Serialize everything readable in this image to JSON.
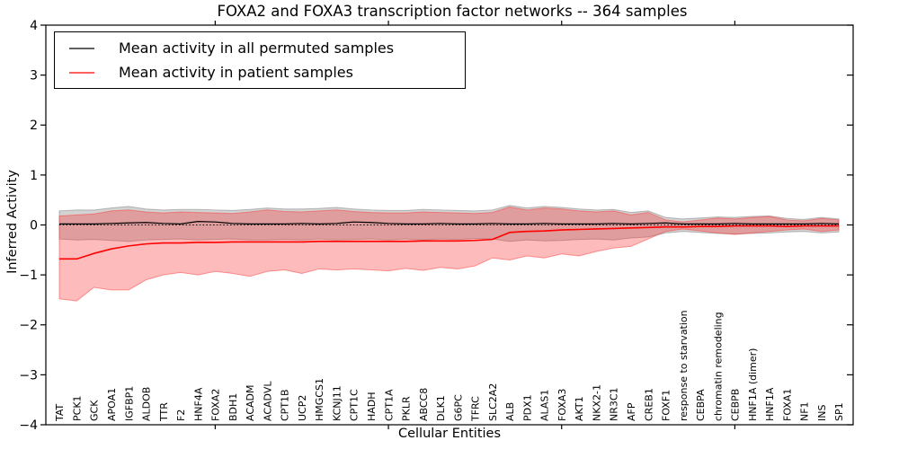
{
  "chart_data": {
    "type": "line",
    "title": "FOXA2 and FOXA3 transcription factor networks -- 364 samples",
    "xlabel": "Cellular Entities",
    "ylabel": "Inferred Activity",
    "ylim": [
      -4,
      4
    ],
    "yticks": [
      4,
      3,
      2,
      1,
      0,
      -1,
      -2,
      -3,
      -4
    ],
    "x_major_tick_indices": [
      9,
      19,
      29,
      39
    ],
    "grid": false,
    "legend": {
      "position": "upper left",
      "entries": [
        {
          "label": "Mean activity in all permuted samples",
          "color": "#000000"
        },
        {
          "label": "Mean activity in patient samples",
          "color": "#ff0000"
        }
      ]
    },
    "categories": [
      "TAT",
      "PCK1",
      "GCK",
      "APOA1",
      "IGFBP1",
      "ALDOB",
      "TTR",
      "F2",
      "HNF4A",
      "FOXA2",
      "BDH1",
      "ACADM",
      "ACADVL",
      "CPT1B",
      "UCP2",
      "HMGCS1",
      "KCNJ11",
      "CPT1C",
      "HADH",
      "CPT1A",
      "PKLR",
      "ABCC8",
      "DLK1",
      "G6PC",
      "TFRC",
      "SLC2A2",
      "ALB",
      "PDX1",
      "ALAS1",
      "FOXA3",
      "AKT1",
      "NKX2-1",
      "NR3C1",
      "AFP",
      "CREB1",
      "FOXF1",
      "response to starvation",
      "CEBPA",
      "chromatin remodeling",
      "CEBPB",
      "HNF1A (dimer)",
      "HNF1A",
      "FOXA1",
      "NF1",
      "INS",
      "SP1"
    ],
    "series": [
      {
        "name": "Mean activity in all permuted samples",
        "color": "#000000",
        "line_width": 1.2,
        "values": [
          0.02,
          0.02,
          0.02,
          0.03,
          0.04,
          0.05,
          0.03,
          0.02,
          0.07,
          0.06,
          0.03,
          0.02,
          0.02,
          0.02,
          0.03,
          0.02,
          0.03,
          0.06,
          0.05,
          0.03,
          0.02,
          0.02,
          0.03,
          0.02,
          0.02,
          0.03,
          0.02,
          0.02,
          0.03,
          0.02,
          0.02,
          0.02,
          0.03,
          0.02,
          0.03,
          0.04,
          0.02,
          0.02,
          0.02,
          0.03,
          0.02,
          0.02,
          0.02,
          0.02,
          0.03,
          0.02
        ]
      },
      {
        "name": "Mean activity in patient samples",
        "color": "#ff0000",
        "line_width": 1.6,
        "values": [
          -0.68,
          -0.68,
          -0.57,
          -0.48,
          -0.42,
          -0.38,
          -0.36,
          -0.36,
          -0.35,
          -0.35,
          -0.34,
          -0.34,
          -0.34,
          -0.34,
          -0.34,
          -0.33,
          -0.33,
          -0.33,
          -0.33,
          -0.33,
          -0.33,
          -0.32,
          -0.32,
          -0.32,
          -0.31,
          -0.29,
          -0.15,
          -0.13,
          -0.12,
          -0.1,
          -0.09,
          -0.08,
          -0.07,
          -0.06,
          -0.05,
          -0.04,
          -0.04,
          -0.03,
          -0.03,
          -0.02,
          -0.02,
          -0.02,
          -0.03,
          -0.02,
          -0.02,
          -0.02
        ]
      }
    ],
    "bands": [
      {
        "name": "permuted-range",
        "fill": "rgba(130,130,130,0.35)",
        "edge": "rgba(110,110,110,0.45)",
        "upper": [
          0.28,
          0.3,
          0.3,
          0.34,
          0.37,
          0.32,
          0.3,
          0.31,
          0.31,
          0.3,
          0.29,
          0.31,
          0.34,
          0.32,
          0.32,
          0.33,
          0.35,
          0.32,
          0.3,
          0.29,
          0.29,
          0.31,
          0.3,
          0.29,
          0.28,
          0.3,
          0.39,
          0.34,
          0.37,
          0.35,
          0.32,
          0.3,
          0.31,
          0.25,
          0.28,
          0.15,
          0.12,
          0.14,
          0.16,
          0.15,
          0.17,
          0.18,
          0.13,
          0.11,
          0.15,
          0.12
        ],
        "lower": [
          -0.28,
          -0.3,
          -0.29,
          -0.31,
          -0.33,
          -0.3,
          -0.29,
          -0.28,
          -0.3,
          -0.29,
          -0.28,
          -0.3,
          -0.3,
          -0.29,
          -0.3,
          -0.28,
          -0.3,
          -0.29,
          -0.28,
          -0.3,
          -0.28,
          -0.3,
          -0.28,
          -0.29,
          -0.27,
          -0.28,
          -0.33,
          -0.3,
          -0.32,
          -0.31,
          -0.29,
          -0.28,
          -0.3,
          -0.26,
          -0.24,
          -0.16,
          -0.13,
          -0.15,
          -0.17,
          -0.18,
          -0.17,
          -0.16,
          -0.14,
          -0.13,
          -0.16,
          -0.14
        ]
      },
      {
        "name": "patient-range",
        "fill": "rgba(250,45,45,0.32)",
        "edge": "rgba(250,60,60,0.5)",
        "upper": [
          0.18,
          0.2,
          0.22,
          0.28,
          0.3,
          0.26,
          0.24,
          0.26,
          0.25,
          0.24,
          0.23,
          0.26,
          0.3,
          0.27,
          0.26,
          0.28,
          0.3,
          0.27,
          0.25,
          0.24,
          0.24,
          0.26,
          0.25,
          0.24,
          0.23,
          0.25,
          0.36,
          0.3,
          0.34,
          0.32,
          0.28,
          0.26,
          0.28,
          0.2,
          0.25,
          0.1,
          0.06,
          0.1,
          0.14,
          0.12,
          0.15,
          0.17,
          0.1,
          0.08,
          0.13,
          0.1
        ],
        "lower": [
          -1.48,
          -1.52,
          -1.25,
          -1.3,
          -1.3,
          -1.1,
          -1.0,
          -0.95,
          -1.0,
          -0.93,
          -0.97,
          -1.03,
          -0.93,
          -0.9,
          -0.97,
          -0.88,
          -0.9,
          -0.88,
          -0.9,
          -0.92,
          -0.87,
          -0.91,
          -0.85,
          -0.88,
          -0.82,
          -0.66,
          -0.7,
          -0.62,
          -0.66,
          -0.58,
          -0.62,
          -0.53,
          -0.46,
          -0.43,
          -0.28,
          -0.13,
          -0.08,
          -0.12,
          -0.16,
          -0.19,
          -0.16,
          -0.13,
          -0.1,
          -0.08,
          -0.13,
          -0.1
        ]
      }
    ],
    "reference_line": {
      "value": 0,
      "color": "#000000",
      "style": "dotted"
    }
  }
}
